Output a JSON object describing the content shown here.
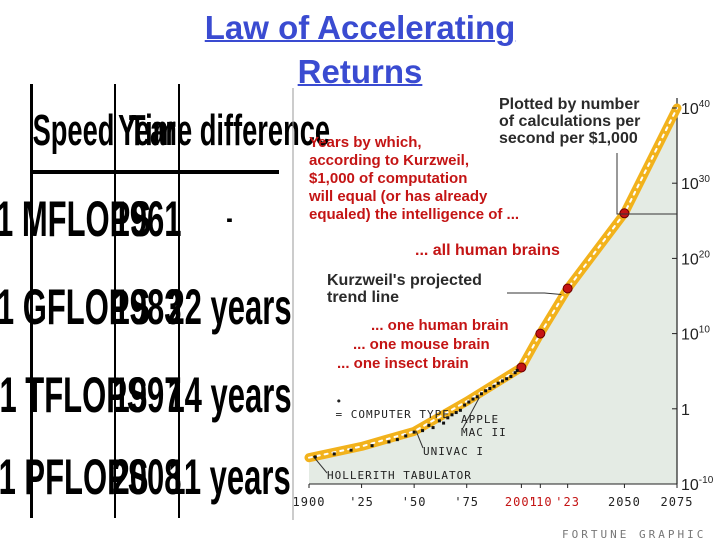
{
  "slide": {
    "title_line1": "Law of Accelerating",
    "title_line2": "Returns",
    "credit": "FORTUNE GRAPHIC"
  },
  "table": {
    "headers": [
      "Speed",
      "Year",
      "Time difference"
    ],
    "rows": [
      [
        "1 MFLOPS",
        "1961",
        "-"
      ],
      [
        "1 GFLOPS",
        "1983",
        "22 years"
      ],
      [
        "1 TFLOPS",
        "1997",
        "14 years"
      ],
      [
        "1 PFLOPS",
        "2008",
        "11 years"
      ]
    ]
  },
  "chart_data": {
    "type": "line",
    "title": "Plotted by number\nof calculations per\nsecond per $1,000",
    "x_ticks": [
      "1900",
      "'25",
      "'50",
      "'75",
      "2001",
      "'10",
      "'23",
      "2050",
      "2075"
    ],
    "x_tick_colors": [
      "#222222",
      "#222222",
      "#222222",
      "#222222",
      "#c41414",
      "#c41414",
      "#c41414",
      "#222222",
      "#222222"
    ],
    "xlim": [
      1900,
      2075
    ],
    "y_ticks": [
      "10^-10",
      "1",
      "10^10",
      "10^20",
      "10^30",
      "10^40"
    ],
    "y_tick_exponents": [
      -10,
      0,
      10,
      20,
      30,
      40
    ],
    "ylim": [
      -10,
      40
    ],
    "y_scale": "log",
    "series": [
      {
        "name": "Kurzweil's projected trend line",
        "x": [
          1900,
          1925,
          1950,
          1975,
          2001,
          2010,
          2023,
          2050,
          2075
        ],
        "y": [
          -6.5,
          -5.0,
          -3.0,
          1.0,
          5.5,
          10.0,
          16.0,
          26.0,
          40.0
        ]
      }
    ],
    "milestones": [
      {
        "label": "... one insect brain",
        "x": 2001,
        "y": 5.5
      },
      {
        "label": "... one mouse brain",
        "x": 2010,
        "y": 10.0
      },
      {
        "label": "... one human brain",
        "x": 2023,
        "y": 16.0
      },
      {
        "label": "... all human brains",
        "x": 2050,
        "y": 26.0
      }
    ],
    "annotations": {
      "intro": "Years by which,\naccording to Kurzweil,\n$1,000 of computation\nwill equal (or has already\nequaled) the intelligence of ...",
      "trend": "Kurzweil's projected\ntrend line",
      "legend": "= COMPUTER TYPE",
      "apple": "APPLE\nMAC II",
      "univac": "UNIVAC I",
      "hollerith": "HOLLERITH TABULATOR"
    },
    "colors": {
      "trend": "#f2b21c",
      "milestone": "#c41414",
      "area": "#e4ebe4",
      "text_red": "#c41414"
    }
  }
}
